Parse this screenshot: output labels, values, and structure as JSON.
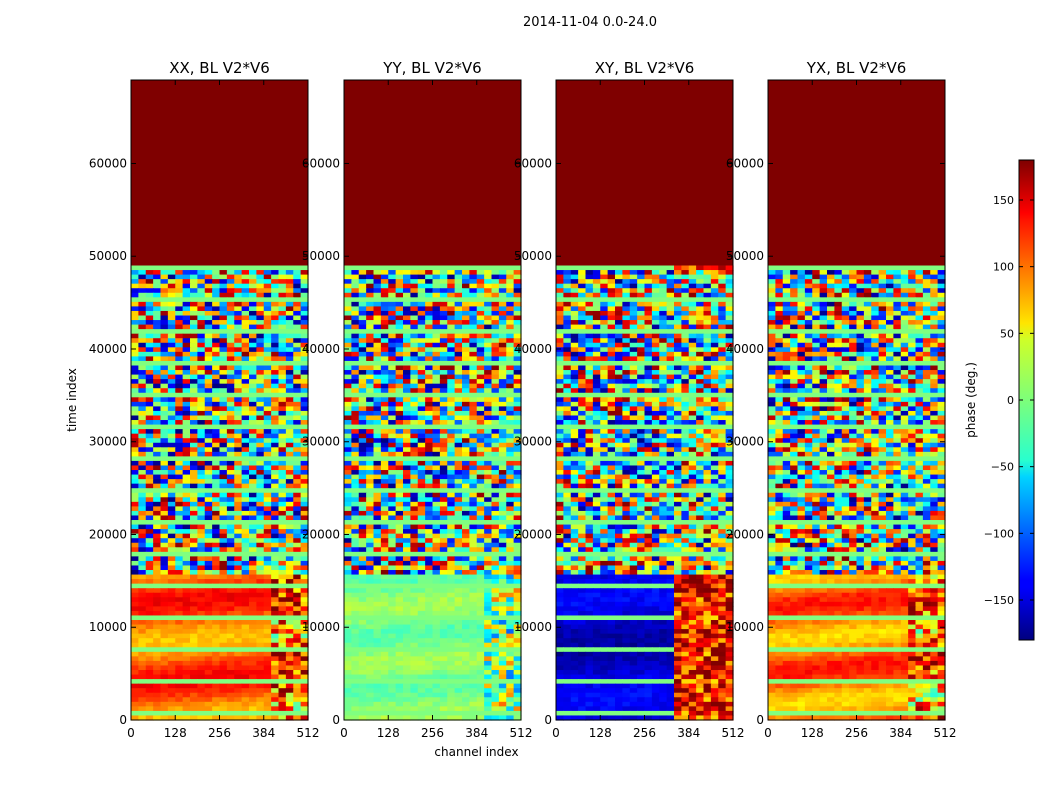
{
  "figure": {
    "suptitle": "2014-11-04 0.0-24.0"
  },
  "chart_data": [
    {
      "type": "heatmap",
      "title": "XX, BL V2*V6",
      "xlabel": "",
      "ylabel": "time index",
      "xlim": [
        0,
        512
      ],
      "ylim": [
        0,
        69000
      ],
      "xticks": [
        0,
        128,
        256,
        384,
        512
      ],
      "yticks": [
        0,
        10000,
        20000,
        30000,
        40000,
        50000,
        60000
      ],
      "flagged_above": 49000,
      "colormap": "jet"
    },
    {
      "type": "heatmap",
      "title": "YY, BL V2*V6",
      "xlabel": "channel index",
      "ylabel": "",
      "xlim": [
        0,
        512
      ],
      "ylim": [
        0,
        69000
      ],
      "xticks": [
        0,
        128,
        256,
        384,
        512
      ],
      "yticks": [
        0,
        10000,
        20000,
        30000,
        40000,
        50000,
        60000
      ],
      "flagged_above": 49000,
      "colormap": "jet"
    },
    {
      "type": "heatmap",
      "title": "XY, BL V2*V6",
      "xlabel": "",
      "ylabel": "",
      "xlim": [
        0,
        512
      ],
      "ylim": [
        0,
        69000
      ],
      "xticks": [
        0,
        128,
        256,
        384,
        512
      ],
      "yticks": [
        0,
        10000,
        20000,
        30000,
        40000,
        50000,
        60000
      ],
      "flagged_above": 49000,
      "colormap": "jet"
    },
    {
      "type": "heatmap",
      "title": "YX, BL V2*V6",
      "xlabel": "",
      "ylabel": "",
      "xlim": [
        0,
        512
      ],
      "ylim": [
        0,
        69000
      ],
      "xticks": [
        0,
        128,
        256,
        384,
        512
      ],
      "yticks": [
        0,
        10000,
        20000,
        30000,
        40000,
        50000,
        60000
      ],
      "flagged_above": 49000,
      "colormap": "jet"
    }
  ],
  "colorbar": {
    "label": "phase (deg.)",
    "range": [
      -180,
      180
    ],
    "ticks": [
      150,
      100,
      50,
      0,
      -50,
      -100,
      -150
    ],
    "tick_labels": [
      "150",
      "100",
      "50",
      "0",
      "−50",
      "−100",
      "−150"
    ],
    "colormap": "jet"
  },
  "colors": {
    "flagged": "#7f0000",
    "axis": "#000000"
  }
}
